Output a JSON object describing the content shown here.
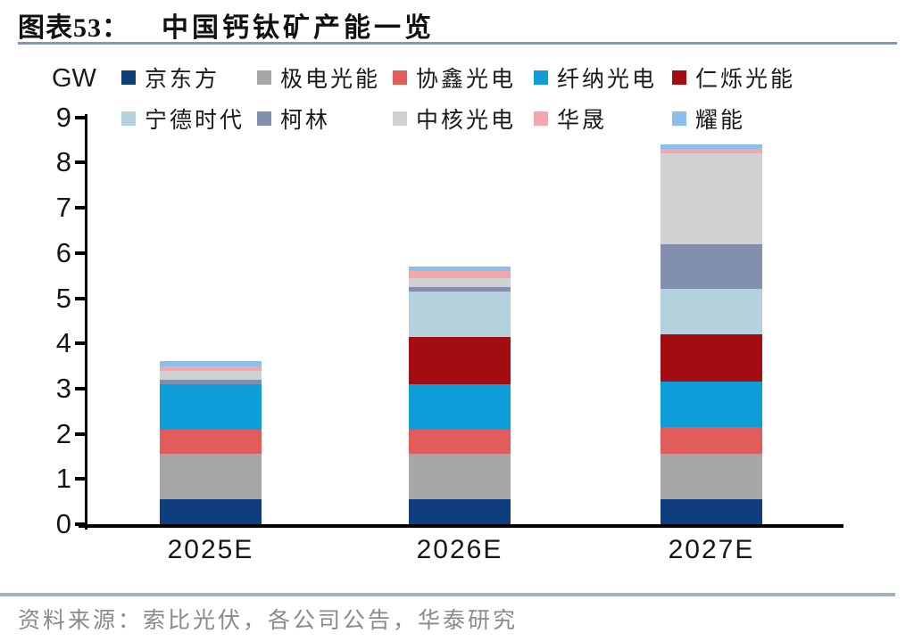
{
  "title": {
    "label": "图表53：",
    "text": "中国钙钛矿产能一览"
  },
  "source": "资料来源：索比光伏，各公司公告，华泰研究",
  "accent_colors": {
    "title_rule": "#8296c4",
    "footer_rule": "#a3b1c0",
    "axis": "#000000"
  },
  "chart_data": {
    "type": "bar",
    "stacked": true,
    "title": "中国钙钛矿产能一览",
    "ylabel": "GW",
    "xlabel": "",
    "ylim": [
      0,
      9
    ],
    "yticks": [
      0,
      1,
      2,
      3,
      4,
      5,
      6,
      7,
      8,
      9
    ],
    "grid": false,
    "legend_position": "top",
    "categories": [
      "2025E",
      "2026E",
      "2027E"
    ],
    "totals_gw": [
      3.6,
      5.7,
      8.4
    ],
    "series": [
      {
        "name": "京东方",
        "color": "#0e3e7e",
        "values": [
          0.55,
          0.55,
          0.55
        ]
      },
      {
        "name": "极电光能",
        "color": "#a7a7a7",
        "values": [
          1.0,
          1.0,
          1.0
        ]
      },
      {
        "name": "协鑫光电",
        "color": "#e25c5c",
        "values": [
          0.55,
          0.55,
          0.6
        ]
      },
      {
        "name": "纤纳光电",
        "color": "#0d9dd9",
        "values": [
          1.0,
          1.0,
          1.0
        ]
      },
      {
        "name": "仁烁光能",
        "color": "#a30c10",
        "values": [
          0,
          1.05,
          1.05
        ]
      },
      {
        "name": "宁德时代",
        "color": "#b3d2de",
        "values": [
          0,
          1.0,
          1.0
        ]
      },
      {
        "name": "柯林",
        "color": "#8390ad",
        "values": [
          0.1,
          0.1,
          1.0
        ]
      },
      {
        "name": "中核光电",
        "color": "#d1d0d2",
        "values": [
          0.2,
          0.2,
          2.0
        ]
      },
      {
        "name": "华晟",
        "color": "#f4a6aa",
        "values": [
          0.1,
          0.15,
          0.1
        ]
      },
      {
        "name": "耀能",
        "color": "#87c0ec",
        "values": [
          0.1,
          0.1,
          0.1
        ]
      }
    ]
  }
}
